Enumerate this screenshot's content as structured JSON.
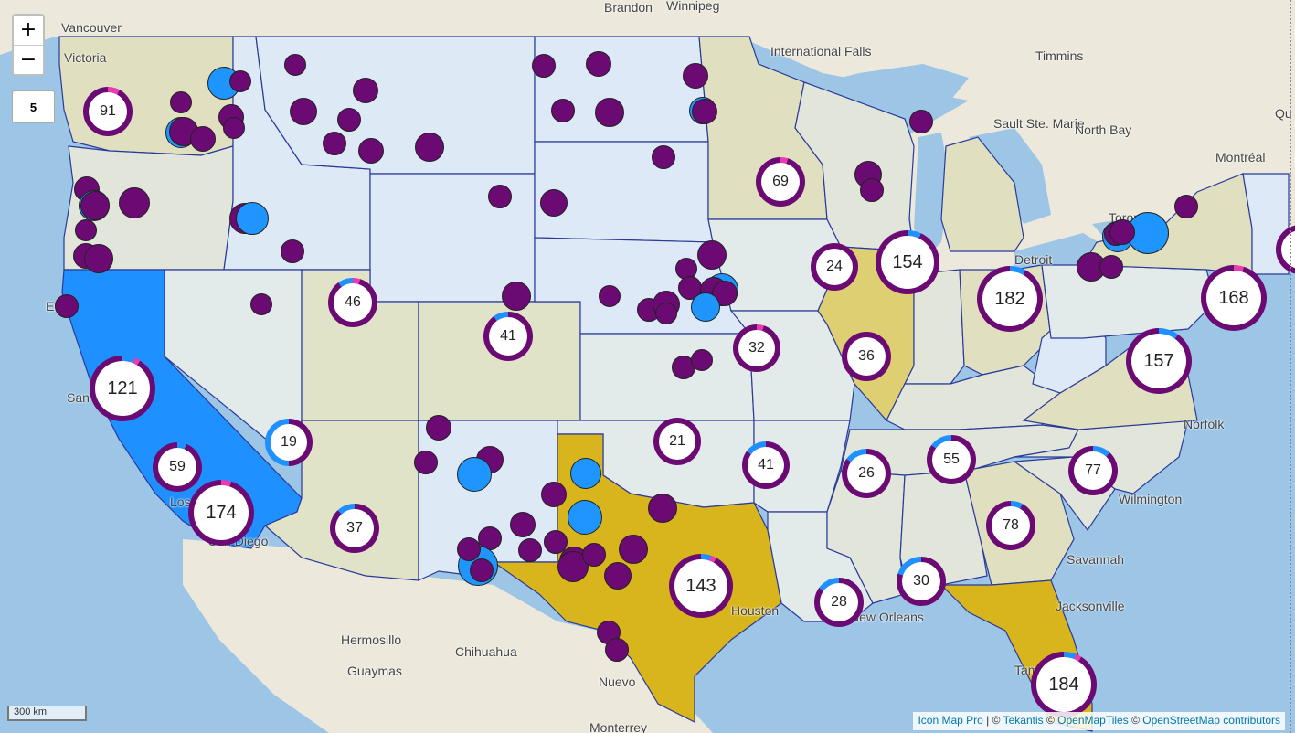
{
  "map": {
    "zoom_in_label": "+",
    "zoom_out_label": "−",
    "zoom_level": "5",
    "scale_label": "300 km",
    "attribution": {
      "icon_map_pro": "Icon Map Pro",
      "sep1": " | © ",
      "tekantis": "Tekantis",
      "sep2": " © ",
      "openmaptiles": "OpenMapTiles",
      "sep3": " © ",
      "osm": "OpenStreetMap contributors"
    },
    "colors": {
      "cluster_ring": "#6a0a72",
      "cluster_accent_blue": "#1e90ff",
      "cluster_accent_pink": "#e83cb0",
      "dot_purple": "#6b0a73",
      "dot_blue": "#1e95ff",
      "california_fill": "#1e90ff",
      "texas_fill": "#d8b51c",
      "florida_fill": "#d8b51c",
      "illinois_fill": "#decf72",
      "water": "#9cc5e6",
      "land": "#ece8dc"
    },
    "place_labels": [
      "Brandon",
      "Winnipeg",
      "Vancouver",
      "Victoria",
      "Timmins",
      "International Falls",
      "Sault Ste. Marie",
      "North Bay",
      "Montréal",
      "Toronto",
      "Detroit",
      "Hermosillo",
      "Chihuahua",
      "Guaymas",
      "Nuevo",
      "Monterrey",
      "Qu",
      "San",
      "Eu",
      "Los",
      "San Diego",
      "Norfolk",
      "Wilmington",
      "Savannah",
      "Jacksonville",
      "Tampa",
      "Houston",
      "New Orleans"
    ],
    "clusters": [
      "91",
      "121",
      "59",
      "174",
      "19",
      "37",
      "46",
      "41",
      "21",
      "143",
      "32",
      "41",
      "69",
      "24",
      "154",
      "36",
      "26",
      "55",
      "28",
      "30",
      "78",
      "182",
      "77",
      "157",
      "168",
      "184"
    ]
  }
}
